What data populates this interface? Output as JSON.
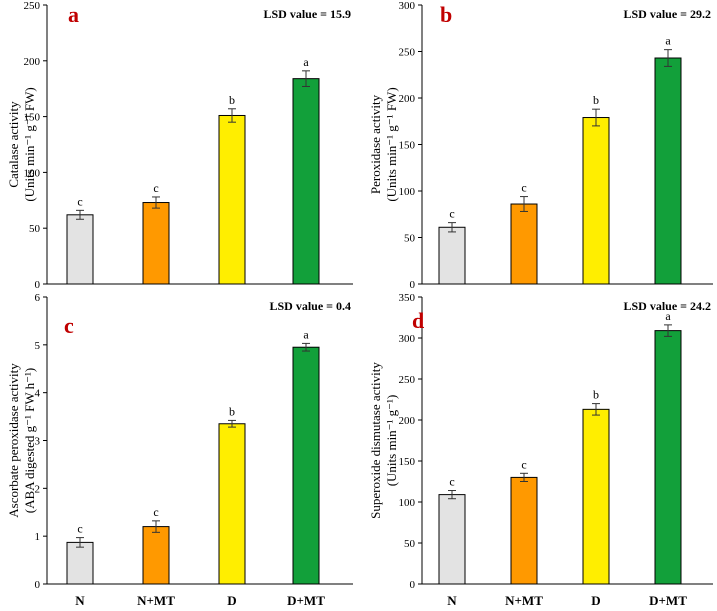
{
  "chart_data": [
    {
      "type": "bar",
      "panel": "a",
      "lsd": "LSD value = 15.9",
      "ylabel_line1": "Catalase activity",
      "ylabel_line2": "(Units min⁻¹ g⁻¹ FW)",
      "categories": [
        "N",
        "N+MT",
        "D",
        "D+MT"
      ],
      "values": [
        62,
        73,
        151,
        184
      ],
      "errors": [
        4,
        5,
        6,
        7
      ],
      "letters": [
        "c",
        "c",
        "b",
        "a"
      ],
      "ylim": [
        0,
        250
      ],
      "ticks": [
        0,
        50,
        100,
        150,
        200,
        250
      ]
    },
    {
      "type": "bar",
      "panel": "b",
      "lsd": "LSD value = 29.2",
      "ylabel_line1": "Peroxidase activity",
      "ylabel_line2": "(Units min⁻¹ g⁻¹ FW)",
      "categories": [
        "N",
        "N+MT",
        "D",
        "D+MT"
      ],
      "values": [
        61,
        86,
        179,
        243
      ],
      "errors": [
        5,
        8,
        9,
        9
      ],
      "letters": [
        "c",
        "c",
        "b",
        "a"
      ],
      "ylim": [
        0,
        300
      ],
      "ticks": [
        0,
        50,
        100,
        150,
        200,
        250,
        300
      ]
    },
    {
      "type": "bar",
      "panel": "c",
      "lsd": "LSD value = 0.4",
      "ylabel_line1": "Ascorbate peroxidase activity",
      "ylabel_line2": "(ABA digested g⁻¹ FW h⁻¹)",
      "categories": [
        "N",
        "N+MT",
        "D",
        "D+MT"
      ],
      "values": [
        0.87,
        1.2,
        3.35,
        4.95
      ],
      "errors": [
        0.1,
        0.12,
        0.07,
        0.08
      ],
      "letters": [
        "c",
        "c",
        "b",
        "a"
      ],
      "ylim": [
        0,
        6
      ],
      "ticks": [
        0,
        1,
        2,
        3,
        4,
        5,
        6
      ]
    },
    {
      "type": "bar",
      "panel": "d",
      "lsd": "LSD value = 24.2",
      "ylabel_line1": "Superoxide dismutase activity",
      "ylabel_line2": "(Units min⁻¹ g⁻¹)",
      "categories": [
        "N",
        "N+MT",
        "D",
        "D+MT"
      ],
      "values": [
        109,
        130,
        213,
        309
      ],
      "errors": [
        5,
        5,
        7,
        7
      ],
      "letters": [
        "c",
        "c",
        "b",
        "a"
      ],
      "ylim": [
        0,
        350
      ],
      "ticks": [
        0,
        50,
        100,
        150,
        200,
        250,
        300,
        350
      ]
    }
  ],
  "colors": {
    "bars": [
      "#e3e3e3",
      "#ff9900",
      "#ffee00",
      "#12a03a"
    ],
    "panel_letter": "#c00000",
    "axis": "#000000"
  }
}
